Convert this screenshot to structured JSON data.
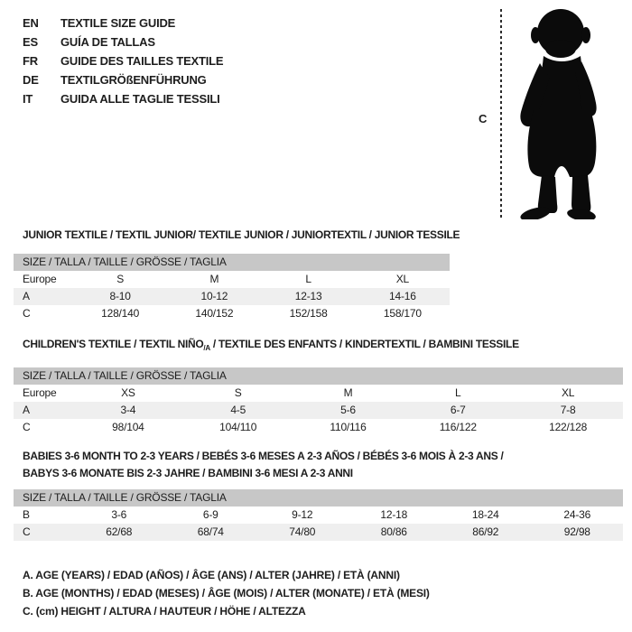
{
  "languages": [
    {
      "code": "EN",
      "title": "TEXTILE SIZE GUIDE"
    },
    {
      "code": "ES",
      "title": "GUÍA DE TALLAS"
    },
    {
      "code": "FR",
      "title": "GUIDE DES TAILLES TEXTILE"
    },
    {
      "code": "DE",
      "title": "TEXTILGRÖßENFÜHRUNG"
    },
    {
      "code": "IT",
      "title": "GUIDA ALLE TAGLIE TESSILI"
    }
  ],
  "figure": {
    "icon": "baby-silhouette",
    "measure_label": "C"
  },
  "sections": [
    {
      "heading_lines": [
        [
          {
            "text": "JUNIOR TEXTILE / TEXTIL JUNIOR/ TEXTILE JUNIOR / JUNIORTEXTIL / JUNIOR TESSILE"
          }
        ]
      ],
      "size_header": "SIZE / TALLA / TAILLE / GRÖSSE / TAGLIA",
      "rows": [
        {
          "label": "Europe",
          "values": [
            "S",
            "M",
            "L",
            "XL"
          ],
          "shaded": false
        },
        {
          "label": "A",
          "values": [
            "8-10",
            "10-12",
            "12-13",
            "14-16"
          ],
          "shaded": true
        },
        {
          "label": "C",
          "values": [
            "128/140",
            "140/152",
            "152/158",
            "158/170"
          ],
          "shaded": false
        }
      ]
    },
    {
      "heading_lines": [
        [
          {
            "text": "CHILDREN'S TEXTILE / TEXTIL NIÑO"
          },
          {
            "text": "/A",
            "sub": true
          },
          {
            "text": " / TEXTILE DES ENFANTS / KINDERTEXTIL / BAMBINI TESSILE"
          }
        ]
      ],
      "size_header": "SIZE / TALLA / TAILLE / GRÖSSE / TAGLIA",
      "rows": [
        {
          "label": "Europe",
          "values": [
            "XS",
            "S",
            "M",
            "L",
            "XL"
          ],
          "shaded": false
        },
        {
          "label": "A",
          "values": [
            "3-4",
            "4-5",
            "5-6",
            "6-7",
            "7-8"
          ],
          "shaded": true
        },
        {
          "label": "C",
          "values": [
            "98/104",
            "104/110",
            "110/116",
            "116/122",
            "122/128"
          ],
          "shaded": false
        }
      ]
    },
    {
      "heading_lines": [
        [
          {
            "text": "BABIES 3-6 MONTH TO 2-3 YEARS / BEBÉS 3-6 MESES A 2-3 AÑOS / BÉBÉS 3-6 MOIS À 2-3 ANS /"
          }
        ],
        [
          {
            "text": "BABYS 3-6 MONATE BIS 2-3 JAHRE / BAMBINI 3-6 MESI A 2-3 ANNI"
          }
        ]
      ],
      "size_header": "SIZE / TALLA / TAILLE / GRÖSSE / TAGLIA",
      "rows": [
        {
          "label": "B",
          "values": [
            "3-6",
            "6-9",
            "9-12",
            "12-18",
            "18-24",
            "24-36"
          ],
          "shaded": false
        },
        {
          "label": "C",
          "values": [
            "62/68",
            "68/74",
            "74/80",
            "80/86",
            "86/92",
            "92/98"
          ],
          "shaded": true
        }
      ]
    }
  ],
  "footnotes": [
    "A. AGE (YEARS) / EDAD (AÑOS) / ÂGE (ANS) / ALTER (JAHRE) / ETÀ (ANNI)",
    "B. AGE (MONTHS) / EDAD (MESES) / ÂGE (MOIS) / ALTER (MONATE) / ETÀ (MESI)",
    "C. (cm) HEIGHT / ALTURA / HAUTEUR / HÖHE / ALTEZZA"
  ],
  "colors": {
    "header_bar": "#c7c7c7",
    "row_shade": "#efefef",
    "text": "#1d1d1d",
    "silhouette": "#0b0b0b"
  }
}
